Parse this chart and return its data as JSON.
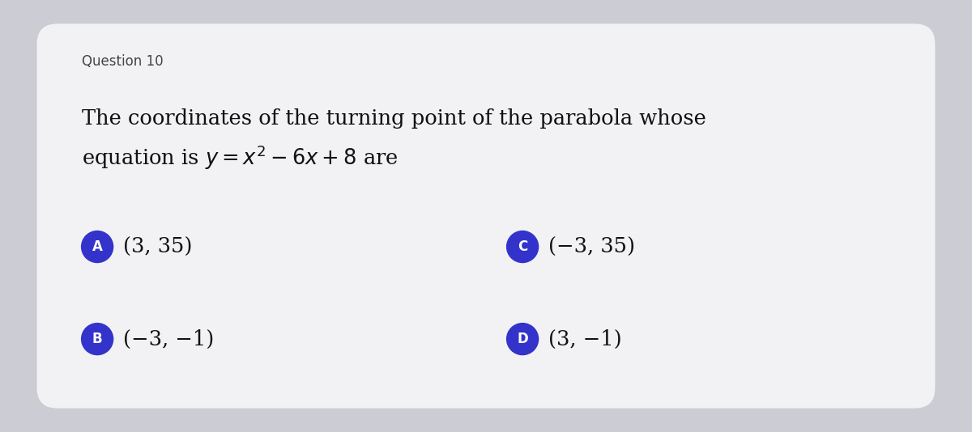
{
  "background_outer": "#ccccd4",
  "background_card": "#f2f2f4",
  "question_label": "Question 10",
  "question_label_fontsize": 12,
  "question_text_line1": "The coordinates of the turning point of the parabola whose",
  "question_text_line2": "equation is $y = x^2 - 6x + 8$ are",
  "question_fontsize": 18.5,
  "options": [
    {
      "label": "A",
      "text": "(3, 35)",
      "row": 0,
      "col": 0
    },
    {
      "label": "C",
      "text": "(−3, 35)",
      "row": 0,
      "col": 1
    },
    {
      "label": "B",
      "text": "(−3, −1)",
      "row": 1,
      "col": 0
    },
    {
      "label": "D",
      "text": "(3, −1)",
      "row": 1,
      "col": 1
    }
  ],
  "option_circle_color": "#3333cc",
  "option_label_color": "#ffffff",
  "option_text_color": "#111111",
  "option_fontsize": 18.5,
  "option_label_fontsize": 12,
  "figsize": [
    12.0,
    5.34
  ],
  "dpi": 100
}
